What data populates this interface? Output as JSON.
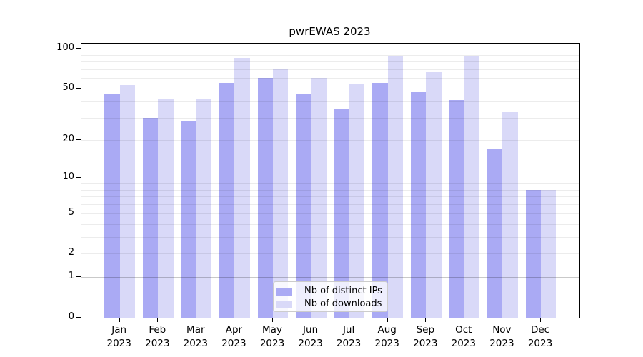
{
  "chart_data": {
    "type": "bar",
    "title": "pwrEWAS 2023",
    "categories": [
      "Jan",
      "Feb",
      "Mar",
      "Apr",
      "May",
      "Jun",
      "Jul",
      "Aug",
      "Sep",
      "Oct",
      "Nov",
      "Dec"
    ],
    "year_label": "2023",
    "series": [
      {
        "name": "Nb of distinct IPs",
        "color": "#aaaaf4",
        "values": [
          46,
          30,
          28,
          55,
          60,
          45,
          35,
          55,
          47,
          41,
          17,
          8
        ]
      },
      {
        "name": "Nb of downloads",
        "color": "#d9d9f8",
        "values": [
          53,
          42,
          42,
          85,
          71,
          60,
          54,
          88,
          67,
          87,
          33,
          8
        ]
      }
    ],
    "y_scale": "log10(1+x)",
    "y_axis_ticks": [
      0,
      1,
      2,
      5,
      10,
      20,
      50,
      100
    ],
    "y_grid_major": [
      1,
      10,
      100
    ],
    "y_grid_minor": [
      2,
      3,
      4,
      5,
      6,
      7,
      8,
      9,
      20,
      30,
      40,
      50,
      60,
      70,
      80,
      90
    ],
    "ylim": [
      0,
      109
    ],
    "grid": "horizontal",
    "legend_position": "inside-bottom-center",
    "background_color": "#ffffff",
    "frame_color": "#000000"
  }
}
